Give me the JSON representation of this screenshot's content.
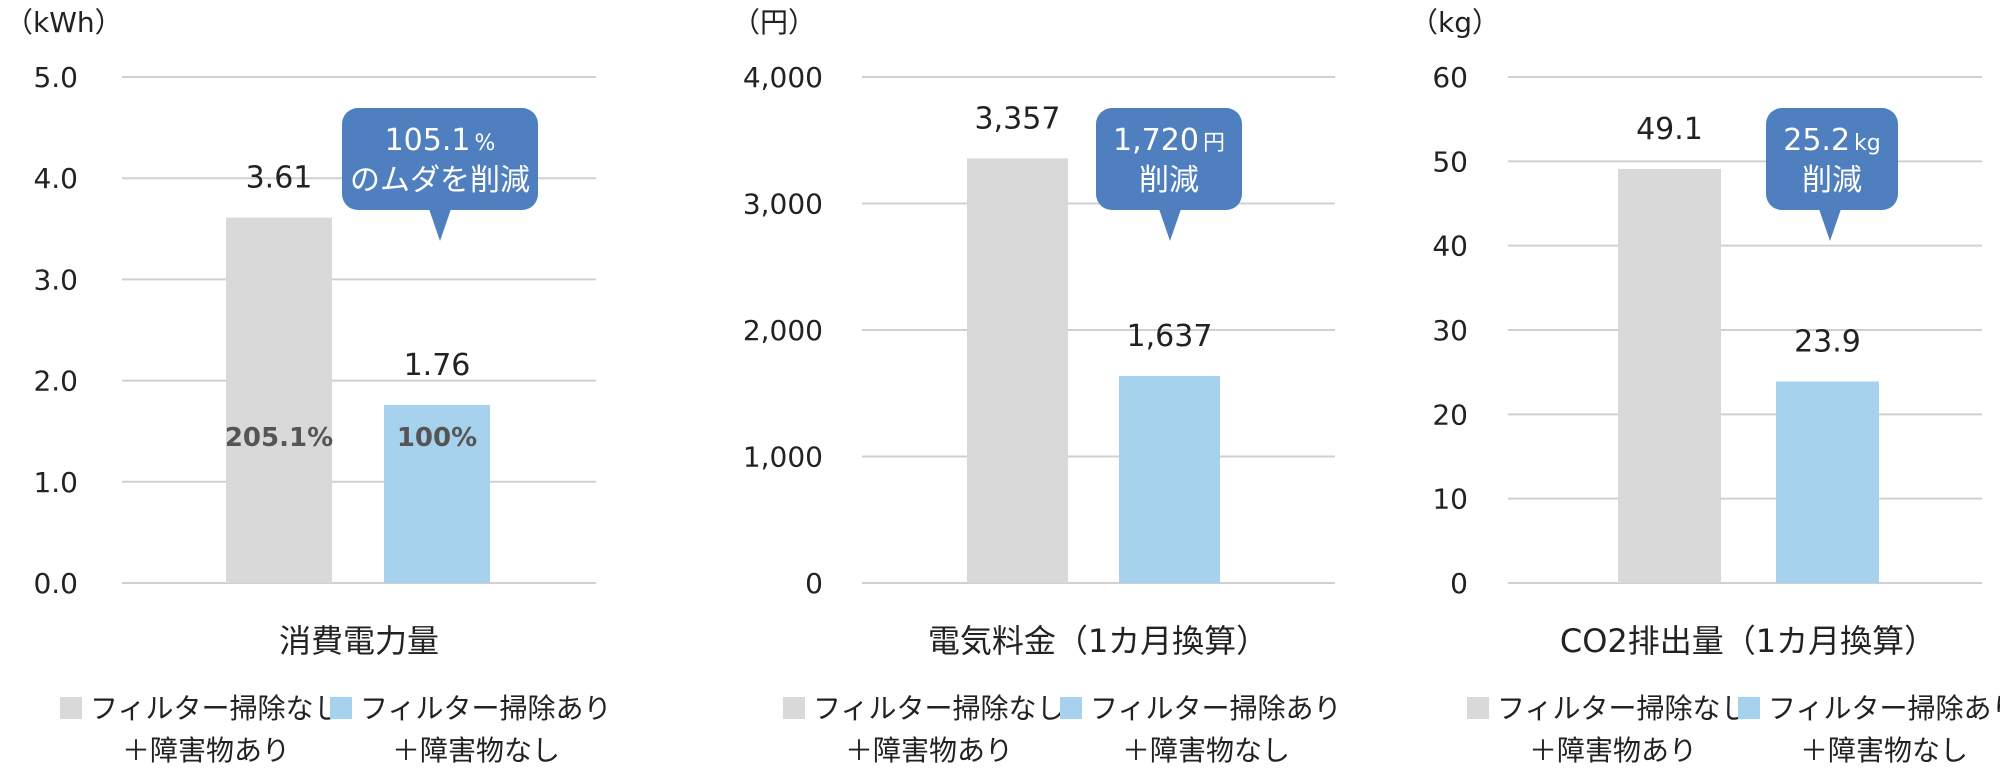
{
  "colors": {
    "gray_bar": "#d9d9d9",
    "blue_bar": "#a7d2ee",
    "callout": "#4f7fbf",
    "grid": "#d0d0d0"
  },
  "chart_data": [
    {
      "type": "bar",
      "categories": [
        "フィルター掃除なし＋障害物あり",
        "フィルター掃除あり＋障害物なし"
      ],
      "values": [
        3.61,
        1.76
      ],
      "value_labels": [
        "3.61",
        "1.76"
      ],
      "inbar_labels": [
        "205.1%",
        "100%"
      ],
      "unit": "（kWh）",
      "xlabel": "消費電力量",
      "ylim": [
        0,
        5
      ],
      "yticks": [
        0,
        1,
        2,
        3,
        4,
        5
      ],
      "ytick_labels": [
        "0.0",
        "1.0",
        "2.0",
        "3.0",
        "4.0",
        "5.0"
      ],
      "callout": {
        "line1": "105.1",
        "line1_suffix": "%",
        "line2": "のムダを削減"
      },
      "legend": [
        {
          "line1": "フィルター掃除なし",
          "line2": "＋障害物あり"
        },
        {
          "line1": "フィルター掃除あり",
          "line2": "＋障害物なし"
        }
      ]
    },
    {
      "type": "bar",
      "categories": [
        "フィルター掃除なし＋障害物あり",
        "フィルター掃除あり＋障害物なし"
      ],
      "values": [
        3357,
        1637
      ],
      "value_labels": [
        "3,357",
        "1,637"
      ],
      "inbar_labels": [
        "",
        ""
      ],
      "unit": "（円）",
      "xlabel": "電気料金（1カ月換算）",
      "ylim": [
        0,
        4000
      ],
      "yticks": [
        0,
        1000,
        2000,
        3000,
        4000
      ],
      "ytick_labels": [
        "0",
        "1,000",
        "2,000",
        "3,000",
        "4,000"
      ],
      "callout": {
        "line1": "1,720",
        "line1_suffix": "円",
        "line2": "削減"
      },
      "legend": [
        {
          "line1": "フィルター掃除なし",
          "line2": "＋障害物あり"
        },
        {
          "line1": "フィルター掃除あり",
          "line2": "＋障害物なし"
        }
      ]
    },
    {
      "type": "bar",
      "categories": [
        "フィルター掃除なし＋障害物あり",
        "フィルター掃除あり＋障害物なし"
      ],
      "values": [
        49.1,
        23.9
      ],
      "value_labels": [
        "49.1",
        "23.9"
      ],
      "inbar_labels": [
        "",
        ""
      ],
      "unit": "（kg）",
      "xlabel": "CO2排出量（1カ月換算）",
      "ylim": [
        0,
        60
      ],
      "yticks": [
        0,
        10,
        20,
        30,
        40,
        50,
        60
      ],
      "ytick_labels": [
        "0",
        "10",
        "20",
        "30",
        "40",
        "50",
        "60"
      ],
      "callout": {
        "line1": "25.2",
        "line1_suffix": "kg",
        "line2": "削減"
      },
      "legend": [
        {
          "line1": "フィルター掃除なし",
          "line2": "＋障害物あり"
        },
        {
          "line1": "フィルター掃除あり",
          "line2": "＋障害物なし"
        }
      ]
    }
  ]
}
